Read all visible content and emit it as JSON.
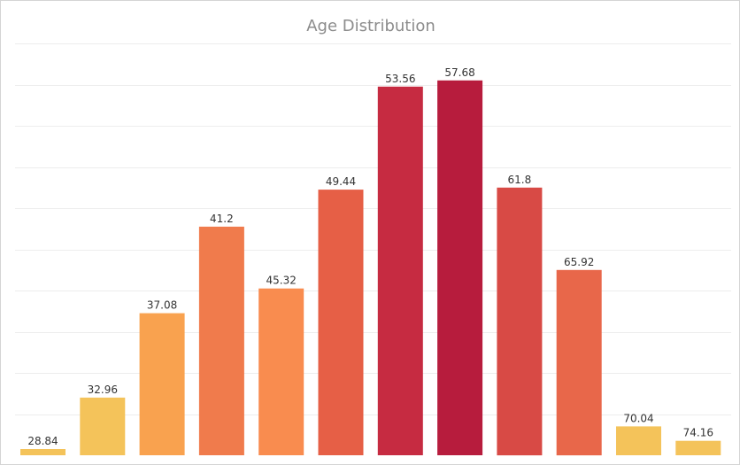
{
  "chart_data": {
    "type": "bar",
    "title": "Age Distribution",
    "xlabel": "",
    "ylabel": "",
    "grid": true,
    "values": [
      1.5,
      14,
      34.5,
      55.5,
      40.5,
      64.5,
      89.5,
      91,
      65,
      45,
      7,
      3.5
    ],
    "labels": [
      "28.84",
      "32.96",
      "37.08",
      "41.2",
      "45.32",
      "49.44",
      "53.56",
      "57.68",
      "61.8",
      "65.92",
      "70.04",
      "74.16"
    ],
    "ylim": [
      0,
      100
    ],
    "colors": [
      "#f4c35a",
      "#f4c35a",
      "#f9a24f",
      "#f07b4c",
      "#f98c4f",
      "#e65f46",
      "#c62b41",
      "#b71c3d",
      "#d84a45",
      "#e8674a",
      "#f4c35a",
      "#f4c35a"
    ]
  }
}
